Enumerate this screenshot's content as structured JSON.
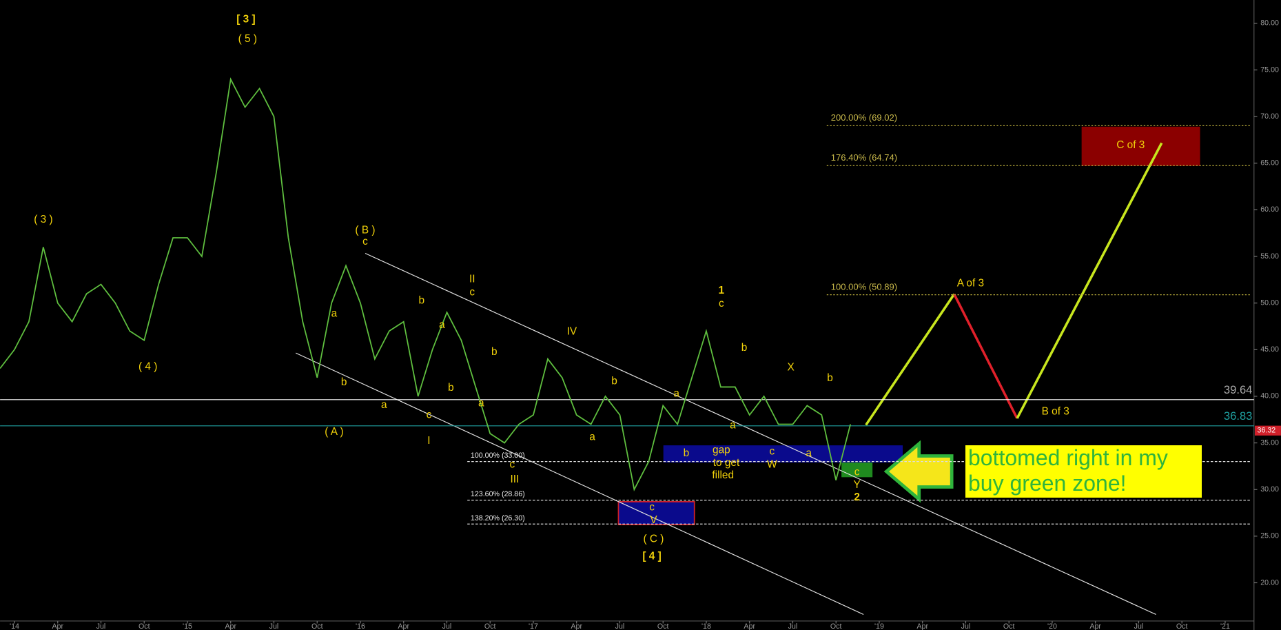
{
  "chart_data": {
    "type": "line",
    "color": "#5fbf3f",
    "x": [
      "2013-12",
      "2014-01",
      "2014-02",
      "2014-03",
      "2014-04",
      "2014-05",
      "2014-06",
      "2014-07",
      "2014-08",
      "2014-09",
      "2014-10",
      "2014-11",
      "2014-12",
      "2015-01",
      "2015-02",
      "2015-03",
      "2015-04",
      "2015-05",
      "2015-06",
      "2015-07",
      "2015-08",
      "2015-09",
      "2015-10",
      "2015-11",
      "2015-12",
      "2016-01",
      "2016-02",
      "2016-03",
      "2016-04",
      "2016-05",
      "2016-06",
      "2016-07",
      "2016-08",
      "2016-09",
      "2016-10",
      "2016-11",
      "2016-12",
      "2017-01",
      "2017-02",
      "2017-03",
      "2017-04",
      "2017-05",
      "2017-06",
      "2017-07",
      "2017-08",
      "2017-09",
      "2017-10",
      "2017-11",
      "2017-12",
      "2018-01",
      "2018-02",
      "2018-03",
      "2018-04",
      "2018-05",
      "2018-06",
      "2018-07",
      "2018-08",
      "2018-09",
      "2018-10",
      "2018-11"
    ],
    "values": [
      43,
      45,
      48,
      56,
      50,
      48,
      51,
      52,
      50,
      47,
      46,
      52,
      57,
      57,
      55,
      64,
      74,
      71,
      73,
      70,
      57,
      48,
      42,
      50,
      54,
      50,
      44,
      47,
      48,
      40,
      45,
      49,
      46,
      41,
      36,
      35,
      37,
      38,
      44,
      42,
      38,
      37,
      40,
      38,
      30,
      33,
      39,
      37,
      42,
      47,
      41,
      41,
      38,
      40,
      37,
      37,
      39,
      38,
      31,
      37
    ],
    "xlim": [
      "2013-12",
      "2021-03"
    ],
    "ylim": [
      15.9,
      82.5
    ],
    "xticks": [
      {
        "value": "2014-01",
        "label": "'14"
      },
      {
        "value": "2014-04",
        "label": "Apr"
      },
      {
        "value": "2014-07",
        "label": "Jul"
      },
      {
        "value": "2014-10",
        "label": "Oct"
      },
      {
        "value": "2015-01",
        "label": "'15"
      },
      {
        "value": "2015-04",
        "label": "Apr"
      },
      {
        "value": "2015-07",
        "label": "Jul"
      },
      {
        "value": "2015-10",
        "label": "Oct"
      },
      {
        "value": "2016-01",
        "label": "'16"
      },
      {
        "value": "2016-04",
        "label": "Apr"
      },
      {
        "value": "2016-07",
        "label": "Jul"
      },
      {
        "value": "2016-10",
        "label": "Oct"
      },
      {
        "value": "2017-01",
        "label": "'17"
      },
      {
        "value": "2017-04",
        "label": "Apr"
      },
      {
        "value": "2017-07",
        "label": "Jul"
      },
      {
        "value": "2017-10",
        "label": "Oct"
      },
      {
        "value": "2018-01",
        "label": "'18"
      },
      {
        "value": "2018-04",
        "label": "Apr"
      },
      {
        "value": "2018-07",
        "label": "Jul"
      },
      {
        "value": "2018-10",
        "label": "Oct"
      },
      {
        "value": "2019-01",
        "label": "'19"
      },
      {
        "value": "2019-04",
        "label": "Apr"
      },
      {
        "value": "2019-07",
        "label": "Jul"
      },
      {
        "value": "2019-10",
        "label": "Oct"
      },
      {
        "value": "2020-01",
        "label": "'20"
      },
      {
        "value": "2020-04",
        "label": "Apr"
      },
      {
        "value": "2020-07",
        "label": "Jul"
      },
      {
        "value": "2020-10",
        "label": "Oct"
      },
      {
        "value": "2021-01",
        "label": "'21"
      }
    ],
    "yticks": [
      {
        "value": 20,
        "label": "20.00"
      },
      {
        "value": 25,
        "label": "25.00"
      },
      {
        "value": 30,
        "label": "30.00"
      },
      {
        "value": 35,
        "label": "35.00"
      },
      {
        "value": 40,
        "label": "40.00"
      },
      {
        "value": 45,
        "label": "45.00"
      },
      {
        "value": 50,
        "label": "50.00"
      },
      {
        "value": 55,
        "label": "55.00"
      },
      {
        "value": 60,
        "label": "60.00"
      },
      {
        "value": 65,
        "label": "65.00"
      },
      {
        "value": 70,
        "label": "70.00"
      },
      {
        "value": 75,
        "label": "75.00"
      },
      {
        "value": 80,
        "label": "80.00"
      }
    ],
    "fib_upper": [
      {
        "label": "200.00% (69.02)",
        "level": 69.02
      },
      {
        "label": "176.40% (64.74)",
        "level": 64.74
      },
      {
        "label": "100.00% (50.89)",
        "level": 50.89
      }
    ],
    "fib_lower": [
      {
        "label": "100.00% (33.00)",
        "level": 33.0
      },
      {
        "label": "123.60% (28.86)",
        "level": 28.86
      },
      {
        "label": "138.20% (26.30)",
        "level": 26.3
      }
    ],
    "levels": [
      {
        "value": 39.64,
        "color": "#ffffff"
      },
      {
        "value": 36.83,
        "color": "#1fa0a0"
      }
    ],
    "last_price": 36.32,
    "annotations": [
      "[ 3 ]",
      "( 5 )",
      "( 3 )",
      "( 4 )",
      "( B )",
      "c",
      "a",
      "b",
      "( A )",
      "a",
      "b",
      "c",
      "I",
      "a",
      "b",
      "II",
      "c",
      "b",
      "a",
      "c",
      "III",
      "IV",
      "b",
      "a",
      "c",
      "V",
      "( C )",
      "[ 4 ]",
      "a",
      "b",
      "1",
      "c",
      "b",
      "a",
      "c",
      "W",
      "X",
      "b",
      "a",
      "c",
      "Y",
      "2",
      "gap",
      "to get",
      "filled",
      "A of 3",
      "B of 3",
      "C of 3"
    ],
    "callout": "bottomed right in my buy green zone!"
  }
}
